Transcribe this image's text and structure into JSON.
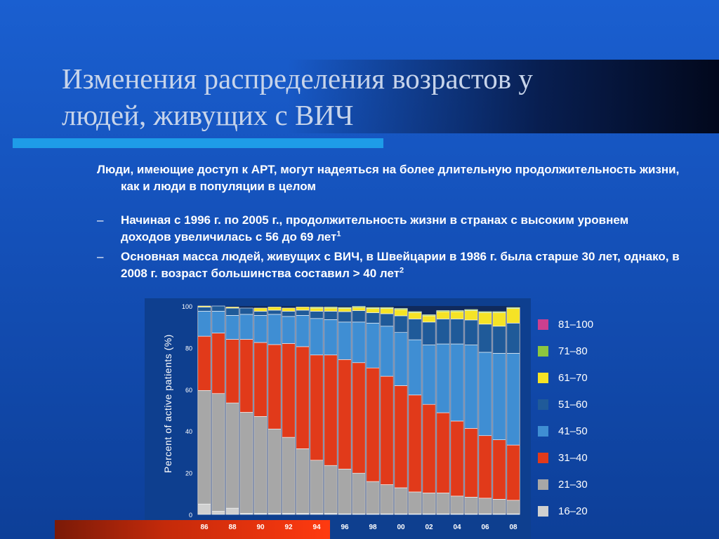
{
  "slide": {
    "title": "Изменения распределения возрастов у людей, живущих с ВИЧ",
    "intro": "Люди, имеющие доступ к АРТ, могут надеяться на более длительную продолжительность жизни, как и люди в популяции в целом",
    "bullets": [
      {
        "dash": "–",
        "text": "Начиная с 1996 г. по 2005 г., продолжительность жизни в странах с высоким уровнем доходов увеличилась с 56 до 69 лет",
        "sup": "1"
      },
      {
        "dash": "–",
        "text": "Основная масса людей, живущих с ВИЧ, в Швейцарии в 1986 г. была старше 30 лет, однако, в 2008 г. возраст большинства составил > 40 лет",
        "sup": "2"
      }
    ]
  },
  "chart_data": {
    "type": "bar",
    "stacked": true,
    "ylabel": "Percent of active patients (%)",
    "xlabel": "",
    "ylim": [
      0,
      100
    ],
    "yticks": [
      "0",
      "20",
      "40",
      "60",
      "80",
      "100"
    ],
    "categories": [
      "86",
      "87",
      "88",
      "89",
      "90",
      "91",
      "92",
      "93",
      "94",
      "95",
      "96",
      "97",
      "98",
      "99",
      "00",
      "01",
      "02",
      "03",
      "04",
      "05",
      "06",
      "07",
      "08"
    ],
    "xtick_labels": [
      "86",
      "",
      "88",
      "",
      "90",
      "",
      "92",
      "",
      "94",
      "",
      "96",
      "",
      "98",
      "",
      "00",
      "",
      "02",
      "",
      "04",
      "",
      "06",
      "",
      "08"
    ],
    "legend_position": "right",
    "series": [
      {
        "name": "16–20",
        "color": "#d0d0d0",
        "values": [
          5,
          1.5,
          3,
          0.5,
          0.5,
          0.5,
          0.5,
          0.5,
          0.5,
          0.5,
          0.3,
          0.3,
          0.3,
          0.3,
          0.3,
          0.3,
          0.3,
          0.3,
          0.3,
          0.3,
          0.3,
          0.3,
          0.3
        ]
      },
      {
        "name": "21–30",
        "color": "#a7a7a7",
        "values": [
          54.5,
          56.5,
          50.5,
          48.5,
          46.5,
          40.5,
          36.5,
          31,
          25.5,
          23,
          21.5,
          19.5,
          15.5,
          14,
          12.5,
          10.5,
          10,
          10,
          8.5,
          8,
          7.5,
          7,
          6.5
        ]
      },
      {
        "name": "31–40",
        "color": "#e13a1a",
        "values": [
          26,
          29,
          30.5,
          35,
          35.5,
          40.5,
          45,
          49,
          50.5,
          53,
          52.5,
          53,
          54.5,
          52,
          49,
          46.5,
          42.5,
          38.5,
          36,
          33,
          30,
          28.5,
          26.5
        ]
      },
      {
        "name": "41–50",
        "color": "#3f8ed3",
        "values": [
          12,
          10.5,
          11.5,
          12,
          13,
          14.5,
          13,
          15,
          17.5,
          17,
          18,
          19.5,
          21.5,
          24,
          25.5,
          26.5,
          28.5,
          33,
          37,
          40,
          40,
          41.5,
          44
        ]
      },
      {
        "name": "51–60",
        "color": "#1f5a99",
        "values": [
          2,
          2.5,
          3.5,
          3,
          2,
          2,
          2.5,
          2.5,
          3.5,
          4,
          5,
          5.5,
          5,
          6,
          8,
          10,
          11,
          12,
          12,
          12,
          13.5,
          13,
          14.5
        ]
      },
      {
        "name": "61–70",
        "color": "#f5e326",
        "values": [
          0.5,
          0,
          0.5,
          0,
          1.5,
          1.5,
          1.5,
          1.5,
          1.5,
          1.5,
          1.5,
          1.5,
          2,
          2.5,
          3,
          3,
          3,
          3.5,
          3.5,
          4.5,
          5.5,
          6.5,
          7
        ]
      },
      {
        "name": "71–80",
        "color": "#8cc63f",
        "values": [
          0,
          0,
          0,
          0,
          0,
          0,
          0,
          0,
          0.5,
          0.5,
          0.5,
          0.5,
          0.5,
          0.5,
          0.5,
          0.5,
          0.5,
          0.5,
          0.5,
          0.5,
          0.5,
          0.5,
          0.5
        ]
      },
      {
        "name": "81–100",
        "color": "#cc3f8f",
        "values": [
          0,
          0,
          0,
          0,
          0,
          0,
          0,
          0,
          0,
          0,
          0,
          0,
          0,
          0,
          0,
          0,
          0,
          0,
          0,
          0,
          0,
          0,
          0
        ]
      }
    ]
  }
}
